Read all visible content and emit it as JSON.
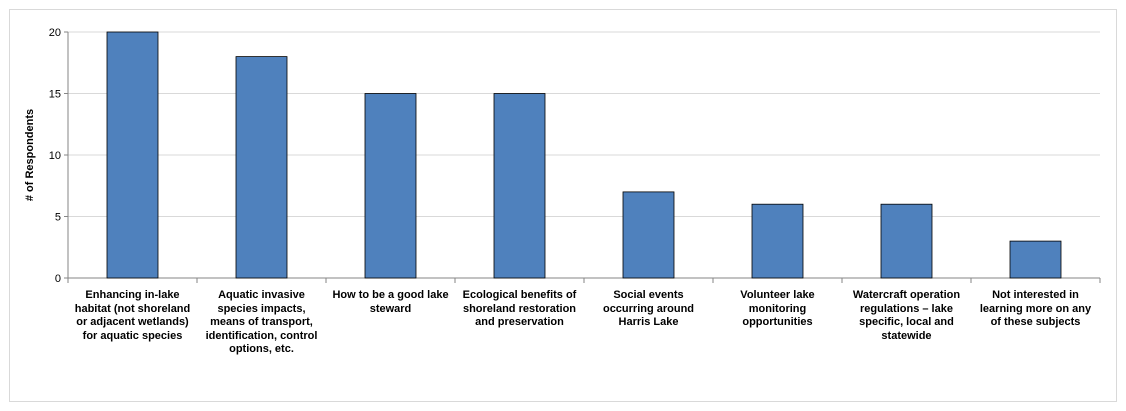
{
  "chart_data": {
    "type": "bar",
    "title": "",
    "xlabel": "",
    "ylabel": "# of Respondents",
    "ylim": [
      0,
      20
    ],
    "yticks": [
      0,
      5,
      10,
      15,
      20
    ],
    "grid": true,
    "legend": "none",
    "bar_color": "#4F81BD",
    "bar_edge_color": "#000000",
    "grid_color": "#d9d9d9",
    "categories": [
      "Enhancing in-lake habitat (not shoreland or adjacent wetlands) for aquatic species",
      "Aquatic invasive species impacts, means of transport, identification, control options, etc.",
      "How to be a good lake steward",
      "Ecological benefits of shoreland restoration and preservation",
      "Social events occurring around Harris Lake",
      "Volunteer lake monitoring opportunities",
      "Watercraft operation regulations – lake specific, local and statewide",
      "Not interested in learning more on any of these subjects"
    ],
    "values": [
      20,
      18,
      15,
      15,
      7,
      6,
      6,
      3
    ]
  }
}
